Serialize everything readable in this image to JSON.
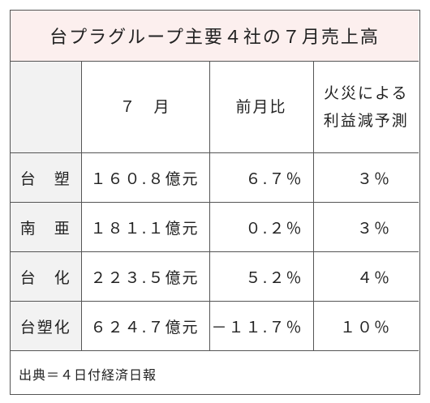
{
  "title": "台プラグループ主要４社の７月売上高",
  "table": {
    "header": [
      "",
      "７　月",
      "前月比",
      [
        "火災による",
        "利益減予測"
      ]
    ],
    "rows": [
      [
        "台　塑",
        "１６０.８億元",
        "６.７％",
        "３％"
      ],
      [
        "南　亜",
        "１８１.１億元",
        "０.２％",
        "３％"
      ],
      [
        "台　化",
        "２２３.５億元",
        "５.２％",
        "４％"
      ],
      [
        "台塑化",
        "６２４.７億元",
        "－１１.７％",
        "１０％"
      ]
    ]
  },
  "source": "出典＝４日付経済日報"
}
